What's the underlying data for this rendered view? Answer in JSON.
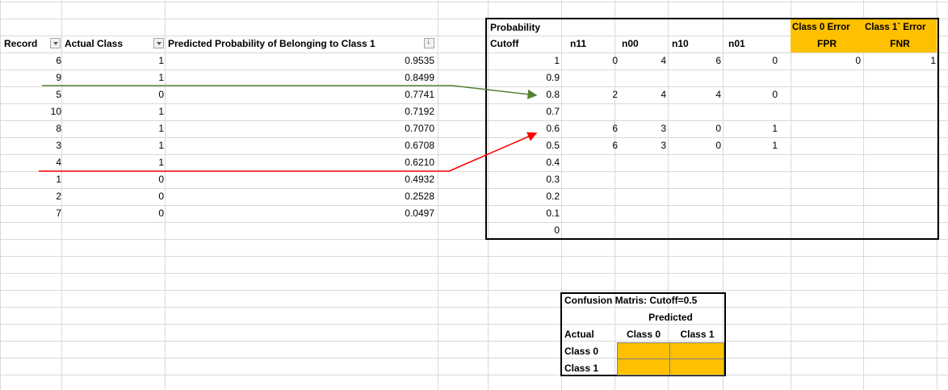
{
  "headers": {
    "record": "Record",
    "actual": "Actual Class",
    "predicted": "Predicted Probability of Belonging to Class 1"
  },
  "rows": [
    {
      "record": "6",
      "actual": "1",
      "prob": "0.9535"
    },
    {
      "record": "9",
      "actual": "1",
      "prob": "0.8499"
    },
    {
      "record": "5",
      "actual": "0",
      "prob": "0.7741"
    },
    {
      "record": "10",
      "actual": "1",
      "prob": "0.7192"
    },
    {
      "record": "8",
      "actual": "1",
      "prob": "0.7070"
    },
    {
      "record": "3",
      "actual": "1",
      "prob": "0.6708"
    },
    {
      "record": "4",
      "actual": "1",
      "prob": "0.6210"
    },
    {
      "record": "1",
      "actual": "0",
      "prob": "0.4932"
    },
    {
      "record": "2",
      "actual": "0",
      "prob": "0.2528"
    },
    {
      "record": "7",
      "actual": "0",
      "prob": "0.0497"
    }
  ],
  "cutoff_table": {
    "header_line1": "Probability",
    "header_line2": "Cutoff",
    "n11": "n11",
    "n00": "n00",
    "n10": "n10",
    "n01": "n01",
    "class0_error": "Class 0  Error",
    "class1_error": "Class 1` Error",
    "fpr": "FPR",
    "fnr": "FNR",
    "rows": [
      {
        "cutoff": "1",
        "n11": "0",
        "n00": "4",
        "n10": "6",
        "n01": "0",
        "fpr": "0",
        "fnr": "1"
      },
      {
        "cutoff": "0.9",
        "n11": "",
        "n00": "",
        "n10": "",
        "n01": "",
        "fpr": "",
        "fnr": ""
      },
      {
        "cutoff": "0.8",
        "n11": "2",
        "n00": "4",
        "n10": "4",
        "n01": "0",
        "fpr": "",
        "fnr": ""
      },
      {
        "cutoff": "0.7",
        "n11": "",
        "n00": "",
        "n10": "",
        "n01": "",
        "fpr": "",
        "fnr": ""
      },
      {
        "cutoff": "0.6",
        "n11": "6",
        "n00": "3",
        "n10": "0",
        "n01": "1",
        "fpr": "",
        "fnr": ""
      },
      {
        "cutoff": "0.5",
        "n11": "6",
        "n00": "3",
        "n10": "0",
        "n01": "1",
        "fpr": "",
        "fnr": ""
      },
      {
        "cutoff": "0.4",
        "n11": "",
        "n00": "",
        "n10": "",
        "n01": "",
        "fpr": "",
        "fnr": ""
      },
      {
        "cutoff": "0.3",
        "n11": "",
        "n00": "",
        "n10": "",
        "n01": "",
        "fpr": "",
        "fnr": ""
      },
      {
        "cutoff": "0.2",
        "n11": "",
        "n00": "",
        "n10": "",
        "n01": "",
        "fpr": "",
        "fnr": ""
      },
      {
        "cutoff": "0.1",
        "n11": "",
        "n00": "",
        "n10": "",
        "n01": "",
        "fpr": "",
        "fnr": ""
      },
      {
        "cutoff": "0",
        "n11": "",
        "n00": "",
        "n10": "",
        "n01": "",
        "fpr": "",
        "fnr": ""
      }
    ]
  },
  "confusion": {
    "title": "Confusion Matris: Cutoff=0.5",
    "predicted": "Predicted",
    "actual": "Actual",
    "class0": "Class 0",
    "class1": "Class 1",
    "row0": "Class 0",
    "row1": "Class 1"
  },
  "colors": {
    "highlight": "#ffc000",
    "green_arrow": "#548235",
    "red_arrow": "#ff0000",
    "gridline": "#d9d9d9"
  }
}
